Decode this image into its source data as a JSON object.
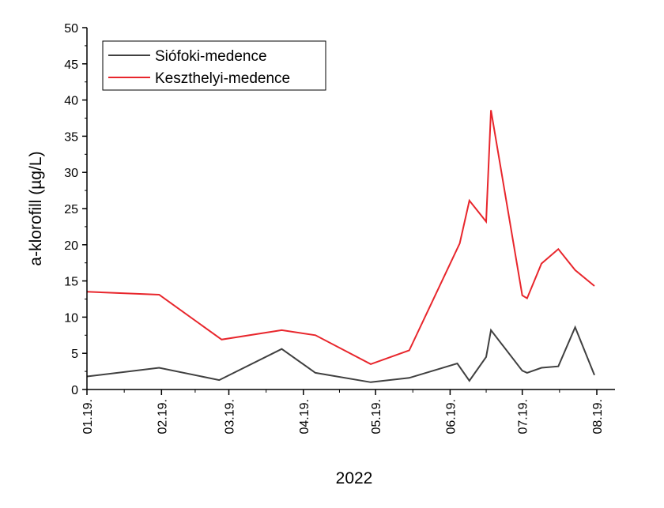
{
  "chart_data": {
    "type": "line",
    "xlabel": "2022",
    "ylabel": "a-klorofill (µg/L)",
    "ylim": [
      0,
      50
    ],
    "yticks": [
      0,
      5,
      10,
      15,
      20,
      25,
      30,
      35,
      40,
      45,
      50
    ],
    "xlim": [
      "2022-01-19",
      "2022-08-19"
    ],
    "xticks": [
      {
        "date": "2022-01-19",
        "label": "01.19."
      },
      {
        "date": "2022-02-19",
        "label": "02.19."
      },
      {
        "date": "2022-03-19",
        "label": "03.19."
      },
      {
        "date": "2022-04-19",
        "label": "04.19."
      },
      {
        "date": "2022-05-19",
        "label": "05.19."
      },
      {
        "date": "2022-06-19",
        "label": "06.19."
      },
      {
        "date": "2022-07-19",
        "label": "07.19."
      },
      {
        "date": "2022-08-19",
        "label": "08.19."
      }
    ],
    "grid": false,
    "legend_position": "top-left",
    "series": [
      {
        "name": "Siófoki-medence",
        "color": "#404040",
        "points": [
          [
            "2022-01-19",
            1.8
          ],
          [
            "2022-02-18",
            3.0
          ],
          [
            "2022-03-15",
            1.3
          ],
          [
            "2022-04-10",
            5.6
          ],
          [
            "2022-04-24",
            2.3
          ],
          [
            "2022-05-17",
            1.0
          ],
          [
            "2022-06-02",
            1.6
          ],
          [
            "2022-06-22",
            3.6
          ],
          [
            "2022-06-27",
            1.2
          ],
          [
            "2022-07-04",
            4.5
          ],
          [
            "2022-07-06",
            8.2
          ],
          [
            "2022-07-19",
            2.6
          ],
          [
            "2022-07-21",
            2.3
          ],
          [
            "2022-07-27",
            3.0
          ],
          [
            "2022-08-03",
            3.2
          ],
          [
            "2022-08-10",
            8.6
          ],
          [
            "2022-08-18",
            2.0
          ]
        ]
      },
      {
        "name": "Keszthelyi-medence",
        "color": "#e8262c",
        "points": [
          [
            "2022-01-19",
            13.5
          ],
          [
            "2022-02-18",
            13.1
          ],
          [
            "2022-03-16",
            6.9
          ],
          [
            "2022-04-10",
            8.2
          ],
          [
            "2022-04-24",
            7.5
          ],
          [
            "2022-05-17",
            3.5
          ],
          [
            "2022-06-02",
            5.4
          ],
          [
            "2022-06-23",
            20.2
          ],
          [
            "2022-06-27",
            26.1
          ],
          [
            "2022-07-04",
            23.2
          ],
          [
            "2022-07-06",
            38.6
          ],
          [
            "2022-07-19",
            13.0
          ],
          [
            "2022-07-21",
            12.6
          ],
          [
            "2022-07-27",
            17.4
          ],
          [
            "2022-08-03",
            19.4
          ],
          [
            "2022-08-10",
            16.5
          ],
          [
            "2022-08-18",
            14.3
          ]
        ]
      }
    ]
  }
}
